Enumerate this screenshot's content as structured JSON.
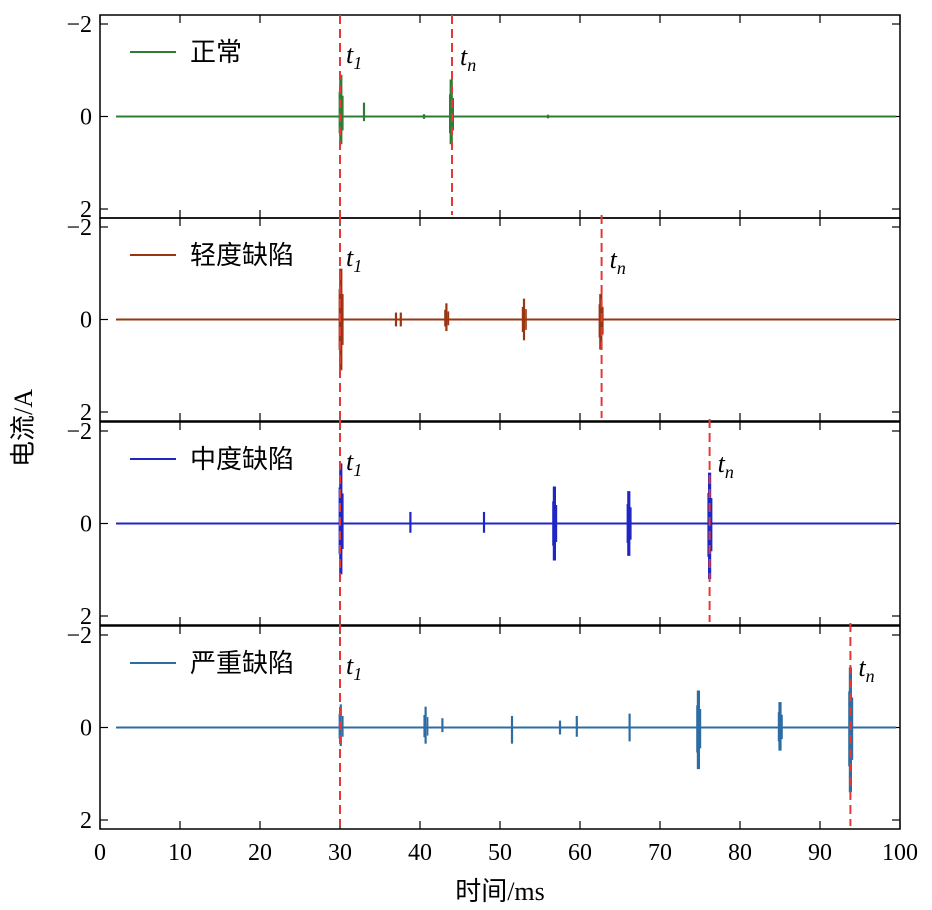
{
  "chart_data": {
    "type": "line",
    "xlabel": "时间/ms",
    "ylabel": "电流/A",
    "xlim": [
      0,
      100
    ],
    "x_ticks": [
      "0",
      "10",
      "20",
      "30",
      "40",
      "50",
      "60",
      "70",
      "80",
      "90",
      "100"
    ],
    "grid": false,
    "legend_position": "top-left",
    "baseline_start": 2,
    "baseline_end": 99.5,
    "panels": [
      {
        "name": "正常",
        "color": "#2e7d32",
        "ylim": [
          -2,
          2
        ],
        "y_ticks": [
          "−2",
          "0",
          "2"
        ],
        "t1": 30,
        "tn": 44,
        "t1_label": "t",
        "t1_sub": "1",
        "tn_label": "t",
        "tn_sub": "n",
        "pulses": [
          {
            "x": 30.1,
            "amp_up": 0.9,
            "amp_down": 0.6
          },
          {
            "x": 33.0,
            "amp_up": 0.3,
            "amp_down": 0.1
          },
          {
            "x": 40.5,
            "amp_up": 0.05,
            "amp_down": 0.05
          },
          {
            "x": 43.9,
            "amp_up": 0.8,
            "amp_down": 0.6
          },
          {
            "x": 56.0,
            "amp_up": 0.04,
            "amp_down": 0.04
          }
        ]
      },
      {
        "name": "轻度缺陷",
        "color": "#9a3412",
        "ylim": [
          -2,
          2
        ],
        "y_ticks": [
          "−2",
          "0",
          "2"
        ],
        "t1": 30,
        "tn": 62.7,
        "t1_label": "t",
        "t1_sub": "1",
        "tn_label": "t",
        "tn_sub": "n",
        "pulses": [
          {
            "x": 30.1,
            "amp_up": 1.1,
            "amp_down": 1.1
          },
          {
            "x": 37.0,
            "amp_up": 0.15,
            "amp_down": 0.15
          },
          {
            "x": 37.6,
            "amp_up": 0.15,
            "amp_down": 0.15
          },
          {
            "x": 43.3,
            "amp_up": 0.35,
            "amp_down": 0.25
          },
          {
            "x": 53.0,
            "amp_up": 0.45,
            "amp_down": 0.45
          },
          {
            "x": 62.6,
            "amp_up": 0.55,
            "amp_down": 0.65
          }
        ]
      },
      {
        "name": "中度缺陷",
        "color": "#1f26c4",
        "ylim": [
          -2,
          2
        ],
        "y_ticks": [
          "−2",
          "0",
          "2"
        ],
        "t1": 30,
        "tn": 76.2,
        "t1_label": "t",
        "t1_sub": "1",
        "tn_label": "t",
        "tn_sub": "n",
        "pulses": [
          {
            "x": 30.1,
            "amp_up": 1.3,
            "amp_down": 1.1
          },
          {
            "x": 38.8,
            "amp_up": 0.25,
            "amp_down": 0.2
          },
          {
            "x": 48.0,
            "amp_up": 0.25,
            "amp_down": 0.2
          },
          {
            "x": 56.8,
            "amp_up": 0.8,
            "amp_down": 0.8
          },
          {
            "x": 66.1,
            "amp_up": 0.7,
            "amp_down": 0.7
          },
          {
            "x": 76.2,
            "amp_up": 1.1,
            "amp_down": 1.2
          }
        ]
      },
      {
        "name": "严重缺陷",
        "color": "#2e6da4",
        "ylim": [
          -2,
          2
        ],
        "y_ticks": [
          "−2",
          "0",
          "2"
        ],
        "t1": 30,
        "tn": 93.8,
        "t1_label": "t",
        "t1_sub": "1",
        "tn_label": "t",
        "tn_sub": "n",
        "pulses": [
          {
            "x": 30.1,
            "amp_up": 0.5,
            "amp_down": 0.4
          },
          {
            "x": 40.7,
            "amp_up": 0.45,
            "amp_down": 0.35
          },
          {
            "x": 42.8,
            "amp_up": 0.2,
            "amp_down": 0.1
          },
          {
            "x": 51.5,
            "amp_up": 0.25,
            "amp_down": 0.35
          },
          {
            "x": 57.5,
            "amp_up": 0.15,
            "amp_down": 0.15
          },
          {
            "x": 59.6,
            "amp_up": 0.25,
            "amp_down": 0.2
          },
          {
            "x": 66.2,
            "amp_up": 0.3,
            "amp_down": 0.3
          },
          {
            "x": 74.8,
            "amp_up": 0.8,
            "amp_down": 0.9
          },
          {
            "x": 85.0,
            "amp_up": 0.55,
            "amp_down": 0.5
          },
          {
            "x": 93.8,
            "amp_up": 1.3,
            "amp_down": 1.4
          }
        ]
      }
    ]
  }
}
